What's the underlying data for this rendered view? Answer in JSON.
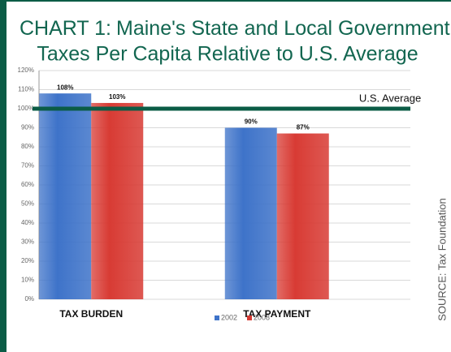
{
  "chart_data": {
    "type": "bar",
    "title": [
      "CHART 1:",
      "Maine's State and Local Government",
      "Taxes Per Capita Relative to U.S. Average"
    ],
    "categories": [
      "TAX BURDEN",
      "TAX PAYMENT"
    ],
    "series": [
      {
        "name": "2002",
        "color": "#3e73c9",
        "values": [
          108,
          90
        ],
        "value_labels": [
          "108%",
          "90%"
        ]
      },
      {
        "name": "2008",
        "color": "#d83b34",
        "values": [
          103,
          87
        ],
        "value_labels": [
          "103%",
          "87%"
        ]
      }
    ],
    "ylim": [
      0,
      120
    ],
    "yticks": [
      {
        "value": 0,
        "label": "0%"
      },
      {
        "value": 10,
        "label": "10%"
      },
      {
        "value": 20,
        "label": "20%"
      },
      {
        "value": 30,
        "label": "30%"
      },
      {
        "value": 40,
        "label": "40%"
      },
      {
        "value": 50,
        "label": "50%"
      },
      {
        "value": 60,
        "label": "60%"
      },
      {
        "value": 70,
        "label": "70%"
      },
      {
        "value": 80,
        "label": "80%"
      },
      {
        "value": 90,
        "label": "90%"
      },
      {
        "value": 100,
        "label": "100%"
      },
      {
        "value": 110,
        "label": "110%"
      },
      {
        "value": 120,
        "label": "120%"
      }
    ],
    "grid": true,
    "reference_line": {
      "value": 100,
      "label": "U.S. Average",
      "color": "#0b5c46"
    },
    "source": "SOURCE: Tax Foundation"
  }
}
